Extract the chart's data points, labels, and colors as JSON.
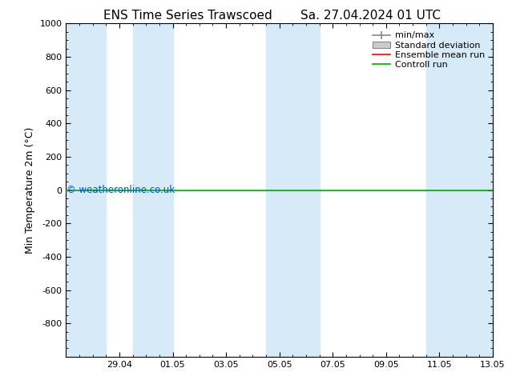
{
  "title_left": "ENS Time Series Trawscoed",
  "title_right": "Sa. 27.04.2024 01 UTC",
  "ylabel": "Min Temperature 2m (°C)",
  "ylim_top": -1000,
  "ylim_bottom": 1000,
  "yticks": [
    -800,
    -600,
    -400,
    -200,
    0,
    200,
    400,
    600,
    800,
    1000
  ],
  "x_tick_labels": [
    "29.04",
    "01.05",
    "03.05",
    "05.05",
    "07.05",
    "09.05",
    "11.05",
    "13.05"
  ],
  "x_tick_positions": [
    2,
    4,
    6,
    8,
    10,
    12,
    14,
    16
  ],
  "x_min": 0,
  "x_max": 16,
  "background_color": "#ffffff",
  "plot_bg_color": "#ffffff",
  "band_color": "#d6eaf8",
  "shaded_bands": [
    [
      0.0,
      1.5
    ],
    [
      2.5,
      4.0
    ],
    [
      7.5,
      9.5
    ],
    [
      13.5,
      16.0
    ]
  ],
  "control_run_color": "#00aa00",
  "ensemble_mean_color": "#ff0000",
  "watermark_text": "© weatheronline.co.uk",
  "watermark_color": "#0055cc",
  "title_fontsize": 11,
  "axis_label_fontsize": 9,
  "tick_fontsize": 8,
  "legend_fontsize": 8
}
